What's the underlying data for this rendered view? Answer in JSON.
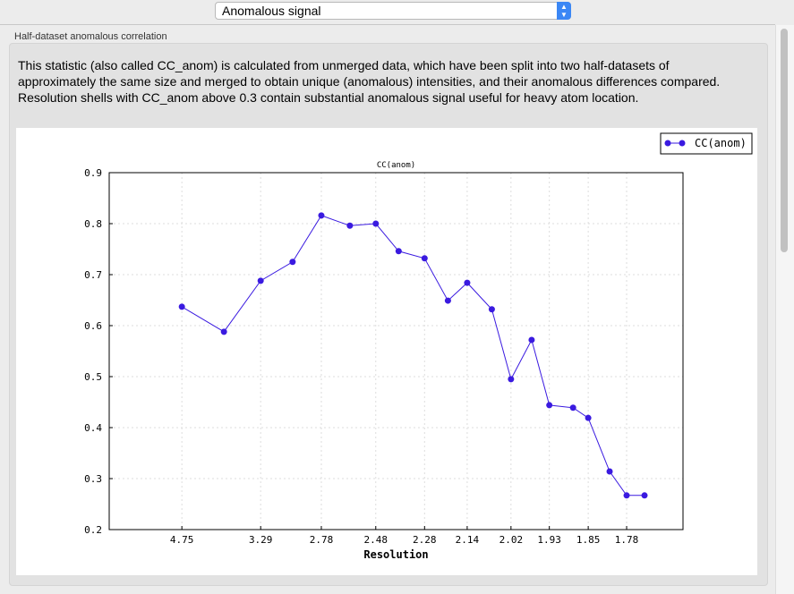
{
  "selector": {
    "value": "Anomalous signal"
  },
  "group": {
    "title": "Half-dataset anomalous correlation",
    "description": "This statistic (also called CC_anom) is calculated from unmerged data, which have been split into two half-datasets of approximately the same size and merged to obtain unique (anomalous) intensities, and their anomalous differences compared.  Resolution shells with CC_anom above 0.3 contain substantial anomalous signal useful for heavy atom location."
  },
  "chart_data": {
    "type": "line",
    "title": "CC(anom)",
    "xlabel": "Resolution",
    "ylabel": "",
    "x_scale": "1/d^2",
    "ylim": [
      0.2,
      0.9
    ],
    "yticks": [
      "0.2",
      "0.3",
      "0.4",
      "0.5",
      "0.6",
      "0.7",
      "0.8",
      "0.9"
    ],
    "xticks": [
      "4.75",
      "3.29",
      "2.78",
      "2.48",
      "2.28",
      "2.14",
      "2.02",
      "1.93",
      "1.85",
      "1.78"
    ],
    "grid": true,
    "legend": "top-right",
    "color": "#3a1ae0",
    "series": [
      {
        "name": "CC(anom)",
        "x": [
          4.75,
          3.78,
          3.29,
          2.99,
          2.78,
          2.61,
          2.48,
          2.38,
          2.28,
          2.2,
          2.14,
          2.07,
          2.02,
          1.97,
          1.93,
          1.88,
          1.85,
          1.81,
          1.78,
          1.75
        ],
        "y": [
          0.637,
          0.588,
          0.688,
          0.725,
          0.816,
          0.796,
          0.8,
          0.746,
          0.732,
          0.649,
          0.684,
          0.632,
          0.495,
          0.572,
          0.444,
          0.439,
          0.419,
          0.314,
          0.267,
          0.267
        ]
      }
    ]
  }
}
